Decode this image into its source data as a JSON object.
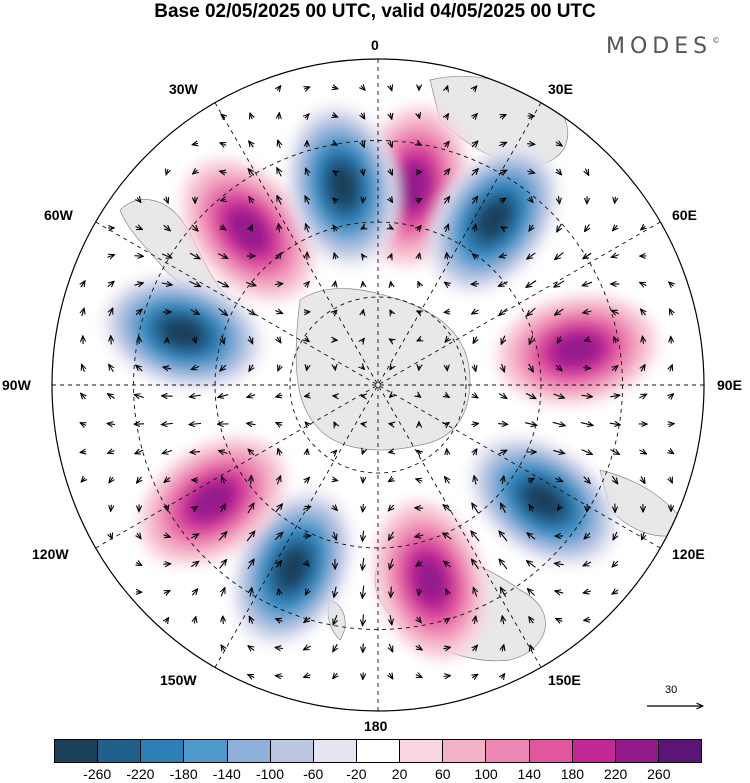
{
  "title": "Base 02/05/2025 00 UTC, valid 04/05/2025 00 UTC",
  "brand": "MODES",
  "brand_mark": "©",
  "longitude_labels": {
    "top": "0",
    "right": "90E",
    "bottom": "180",
    "left": "90W",
    "l30e": "30E",
    "l60e": "60E",
    "l120e": "120E",
    "l150e": "150E",
    "l30w": "30W",
    "l60w": "60W",
    "l120w": "120W",
    "l150w": "150W"
  },
  "reference_vector": {
    "value": "30",
    "icon": "arrow-right-icon"
  },
  "colorbar": {
    "colors": [
      "#1c3f5a",
      "#215f8c",
      "#2d7fb5",
      "#4f9acb",
      "#8fb1d9",
      "#bcc7e3",
      "#e6e6f3",
      "#ffffff",
      "#f9d6df",
      "#f4b2c8",
      "#ee86b4",
      "#e0579f",
      "#c32897",
      "#941a8c",
      "#5b1577"
    ],
    "ticks": [
      "-260",
      "-220",
      "-180",
      "-140",
      "-100",
      "-60",
      "-20",
      "20",
      "60",
      "100",
      "140",
      "180",
      "220",
      "260"
    ]
  },
  "anomaly_centers": [
    {
      "sign": "positive",
      "lon": "10E"
    },
    {
      "sign": "negative",
      "lon": "35E"
    },
    {
      "sign": "positive",
      "lon": "80E"
    },
    {
      "sign": "negative",
      "lon": "125E"
    },
    {
      "sign": "positive",
      "lon": "165E"
    },
    {
      "sign": "negative",
      "lon": "155W"
    },
    {
      "sign": "positive",
      "lon": "125W"
    },
    {
      "sign": "negative",
      "lon": "75W"
    },
    {
      "sign": "positive",
      "lon": "40W"
    },
    {
      "sign": "negative",
      "lon": "10W"
    }
  ]
}
